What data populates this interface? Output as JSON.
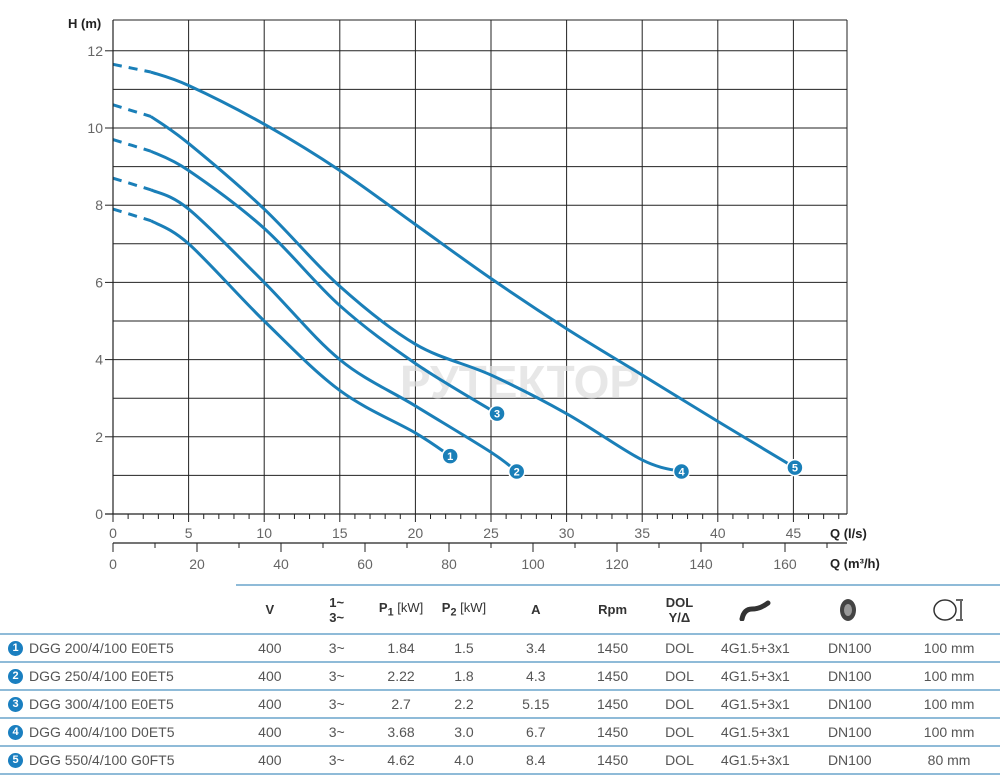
{
  "chart_data": {
    "type": "line",
    "ylabel": "H (m)",
    "xlabel": "Q (l/s)",
    "x2label": "Q (m³/h)",
    "xlim": [
      0,
      48.5
    ],
    "ylim": [
      0,
      12.8
    ],
    "x_ticks": [
      "0",
      "5",
      "10",
      "15",
      "20",
      "25",
      "30",
      "35",
      "40",
      "45"
    ],
    "x2_ticks": [
      "0",
      "20",
      "40",
      "60",
      "80",
      "100",
      "120",
      "140",
      "160"
    ],
    "y_ticks": [
      "0",
      "2",
      "4",
      "6",
      "8",
      "10",
      "12"
    ],
    "grid": true,
    "color": "#1a7fb8",
    "watermark": "РУТЕКТОР",
    "series": [
      {
        "label": "1",
        "dashed": [
          [
            0,
            7.9
          ],
          [
            2.5,
            7.6
          ]
        ],
        "points": [
          [
            2.5,
            7.6
          ],
          [
            5,
            7.0
          ],
          [
            10,
            5.0
          ],
          [
            15,
            3.2
          ],
          [
            20,
            2.1
          ],
          [
            22.3,
            1.5
          ]
        ]
      },
      {
        "label": "2",
        "dashed": [
          [
            0,
            8.7
          ],
          [
            2.5,
            8.4
          ]
        ],
        "points": [
          [
            2.5,
            8.4
          ],
          [
            5,
            7.9
          ],
          [
            10,
            6.0
          ],
          [
            15,
            4.0
          ],
          [
            20,
            2.8
          ],
          [
            25,
            1.6
          ],
          [
            26.7,
            1.1
          ]
        ]
      },
      {
        "label": "3",
        "dashed": [
          [
            0,
            9.7
          ],
          [
            2.5,
            9.4
          ]
        ],
        "points": [
          [
            2.5,
            9.4
          ],
          [
            5,
            8.9
          ],
          [
            10,
            7.4
          ],
          [
            15,
            5.4
          ],
          [
            20,
            3.9
          ],
          [
            25.4,
            2.6
          ]
        ]
      },
      {
        "label": "4",
        "dashed": [
          [
            0,
            10.6
          ],
          [
            2.5,
            10.3
          ]
        ],
        "points": [
          [
            2.5,
            10.3
          ],
          [
            5,
            9.6
          ],
          [
            10,
            7.9
          ],
          [
            15,
            5.9
          ],
          [
            20,
            4.4
          ],
          [
            25,
            3.6
          ],
          [
            30,
            2.6
          ],
          [
            35,
            1.4
          ],
          [
            37.6,
            1.1
          ]
        ]
      },
      {
        "label": "5",
        "dashed": [
          [
            0,
            11.65
          ],
          [
            2.5,
            11.45
          ]
        ],
        "points": [
          [
            2.5,
            11.45
          ],
          [
            5,
            11.1
          ],
          [
            10,
            10.1
          ],
          [
            15,
            8.9
          ],
          [
            20,
            7.5
          ],
          [
            25,
            6.1
          ],
          [
            30,
            4.8
          ],
          [
            35,
            3.6
          ],
          [
            40,
            2.4
          ],
          [
            45.1,
            1.2
          ]
        ]
      }
    ]
  },
  "table": {
    "headers": {
      "v": "V",
      "phase1": "1~",
      "phase3": "3~",
      "p1": "P",
      "p1_sub": "1",
      "p1_unit": " [kW]",
      "p2": "P",
      "p2_sub": "2",
      "p2_unit": " [kW]",
      "a": "A",
      "rpm": "Rpm",
      "dol1": "DOL",
      "dol2": "Y/Δ",
      "cable_icon": "cable-icon",
      "outlet_icon": "flange-outlet-icon",
      "passage_icon": "free-passage-icon"
    },
    "rows": [
      {
        "n": "1",
        "model": "DGG 200/4/100 E0ET5",
        "v": "400",
        "phase": "3~",
        "p1": "1.84",
        "p2": "1.5",
        "a": "3.4",
        "rpm": "1450",
        "start": "DOL",
        "cable": "4G1.5+3x1",
        "dn": "DN100",
        "passage": "100 mm"
      },
      {
        "n": "2",
        "model": "DGG 250/4/100 E0ET5",
        "v": "400",
        "phase": "3~",
        "p1": "2.22",
        "p2": "1.8",
        "a": "4.3",
        "rpm": "1450",
        "start": "DOL",
        "cable": "4G1.5+3x1",
        "dn": "DN100",
        "passage": "100 mm"
      },
      {
        "n": "3",
        "model": "DGG 300/4/100 E0ET5",
        "v": "400",
        "phase": "3~",
        "p1": "2.7",
        "p2": "2.2",
        "a": "5.15",
        "rpm": "1450",
        "start": "DOL",
        "cable": "4G1.5+3x1",
        "dn": "DN100",
        "passage": "100 mm"
      },
      {
        "n": "4",
        "model": "DGG 400/4/100 D0ET5",
        "v": "400",
        "phase": "3~",
        "p1": "3.68",
        "p2": "3.0",
        "a": "6.7",
        "rpm": "1450",
        "start": "DOL",
        "cable": "4G1.5+3x1",
        "dn": "DN100",
        "passage": "100 mm"
      },
      {
        "n": "5",
        "model": "DGG 550/4/100 G0FT5",
        "v": "400",
        "phase": "3~",
        "p1": "4.62",
        "p2": "4.0",
        "a": "8.4",
        "rpm": "1450",
        "start": "DOL",
        "cable": "4G1.5+3x1",
        "dn": "DN100",
        "passage": "80 mm"
      }
    ]
  }
}
